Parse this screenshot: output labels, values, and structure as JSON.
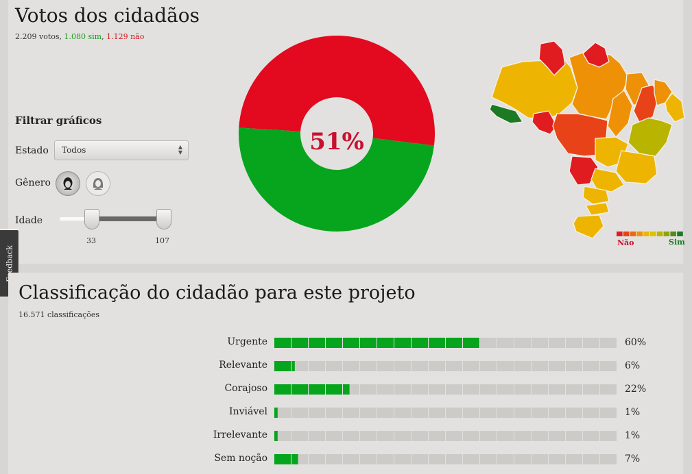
{
  "votes": {
    "title": "Votos dos cidadãos",
    "total_text": "2.209 votos, ",
    "sim_text": "1.080 sim",
    "separator": ", ",
    "nao_text": "1.129 não",
    "percent_label": "51%",
    "nao_fraction": 0.51,
    "colors": {
      "nao": "#e3091f",
      "sim": "#07a51d"
    }
  },
  "filters": {
    "title": "Filtrar gráficos",
    "estado_label": "Estado",
    "estado_value": "Todos",
    "genero_label": "Gênero",
    "idade_label": "Idade",
    "idade_min": "33",
    "idade_max": "107"
  },
  "map": {
    "legend_nao": "Não",
    "legend_sim": "Sim",
    "legend_colors": [
      "#e01c21",
      "#e84219",
      "#ec6a12",
      "#ee9107",
      "#edb501",
      "#dcc200",
      "#b8b400",
      "#8ea40a",
      "#4f8e15",
      "#1c7a24"
    ]
  },
  "feedback": {
    "label": "Feedback"
  },
  "classification": {
    "title": "Classificação do cidadão para este projeto",
    "subtitle": "16.571 classificações",
    "rows": [
      {
        "label": "Urgente",
        "pct_text": "60%",
        "value": 0.6
      },
      {
        "label": "Relevante",
        "pct_text": "6%",
        "value": 0.06
      },
      {
        "label": "Corajoso",
        "pct_text": "22%",
        "value": 0.22
      },
      {
        "label": "Inviável",
        "pct_text": "1%",
        "value": 0.01
      },
      {
        "label": "Irrelevante",
        "pct_text": "1%",
        "value": 0.01
      },
      {
        "label": "Sem noção",
        "pct_text": "7%",
        "value": 0.07
      }
    ],
    "colors": {
      "filled": "#07a51d",
      "empty": "#cdcbc8"
    }
  }
}
